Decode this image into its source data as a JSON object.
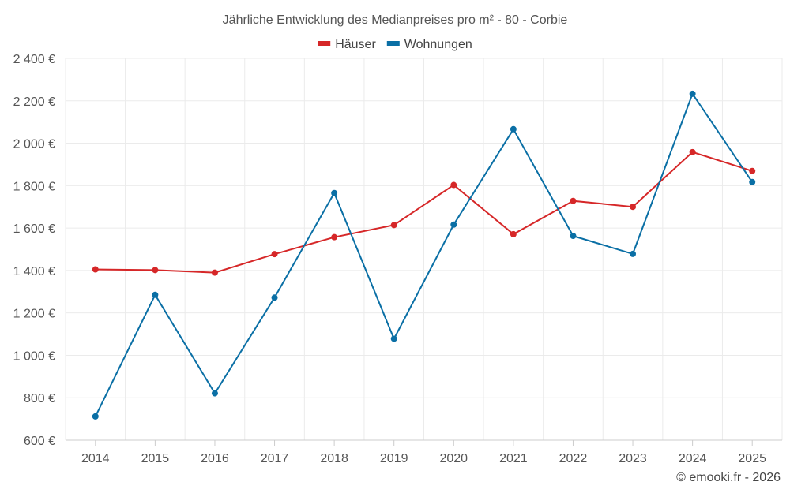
{
  "chart_data": {
    "type": "line",
    "title": "Jährliche Entwicklung des Medianpreises pro m² - 80 - Corbie",
    "categories": [
      "2014",
      "2015",
      "2016",
      "2017",
      "2018",
      "2019",
      "2020",
      "2021",
      "2022",
      "2023",
      "2024",
      "2025"
    ],
    "y_ticks": [
      "600 €",
      "800 €",
      "1 000 €",
      "1 200 €",
      "1 400 €",
      "1 600 €",
      "1 800 €",
      "2 000 €",
      "2 200 €",
      "2 400 €"
    ],
    "ylim": [
      600,
      2400
    ],
    "grid": true,
    "legend_position": "top-center",
    "series": [
      {
        "name": "Häuser",
        "color": "#d62728",
        "values": [
          1405,
          1402,
          1390,
          1477,
          1557,
          1614,
          1803,
          1571,
          1728,
          1700,
          1958,
          1869
        ]
      },
      {
        "name": "Wohnungen",
        "color": "#0a6fa5",
        "values": [
          712,
          1285,
          821,
          1272,
          1765,
          1078,
          1616,
          2066,
          1563,
          1478,
          2233,
          1817
        ]
      }
    ],
    "credit": "© emooki.fr - 2026"
  }
}
